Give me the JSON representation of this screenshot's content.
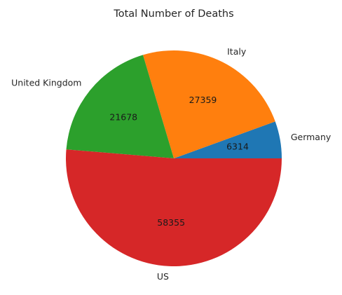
{
  "chart_data": {
    "type": "pie",
    "title": "Total Number of Deaths",
    "categories": [
      "Germany",
      "Italy",
      "United Kingdom",
      "US"
    ],
    "values": [
      6314,
      27359,
      21678,
      58355
    ],
    "value_labels": [
      "6314",
      "27359",
      "21678",
      "58355"
    ],
    "colors": [
      "#1f77b4",
      "#ff7f0e",
      "#2ca02c",
      "#d62728"
    ],
    "start_angle_deg": 0,
    "direction": "counterclockwise"
  }
}
